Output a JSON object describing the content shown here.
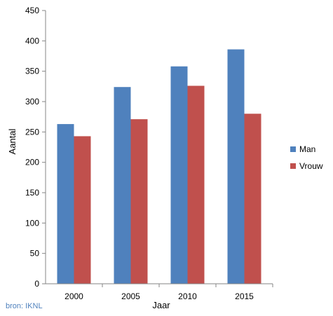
{
  "chart_data": {
    "type": "bar",
    "title": "",
    "xlabel": "Jaar",
    "ylabel": "Aantal",
    "categories": [
      "2000",
      "2005",
      "2010",
      "2015"
    ],
    "series": [
      {
        "name": "Man",
        "values": [
          263,
          324,
          358,
          386
        ],
        "color": "#4f81bd"
      },
      {
        "name": "Vrouw",
        "values": [
          243,
          271,
          326,
          280
        ],
        "color": "#c0504d"
      }
    ],
    "ylim": [
      0,
      450
    ],
    "yticks": [
      0,
      50,
      100,
      150,
      200,
      250,
      300,
      350,
      400,
      450
    ],
    "grid": false,
    "legend_position": "right"
  },
  "source_note": "bron: IKNL"
}
